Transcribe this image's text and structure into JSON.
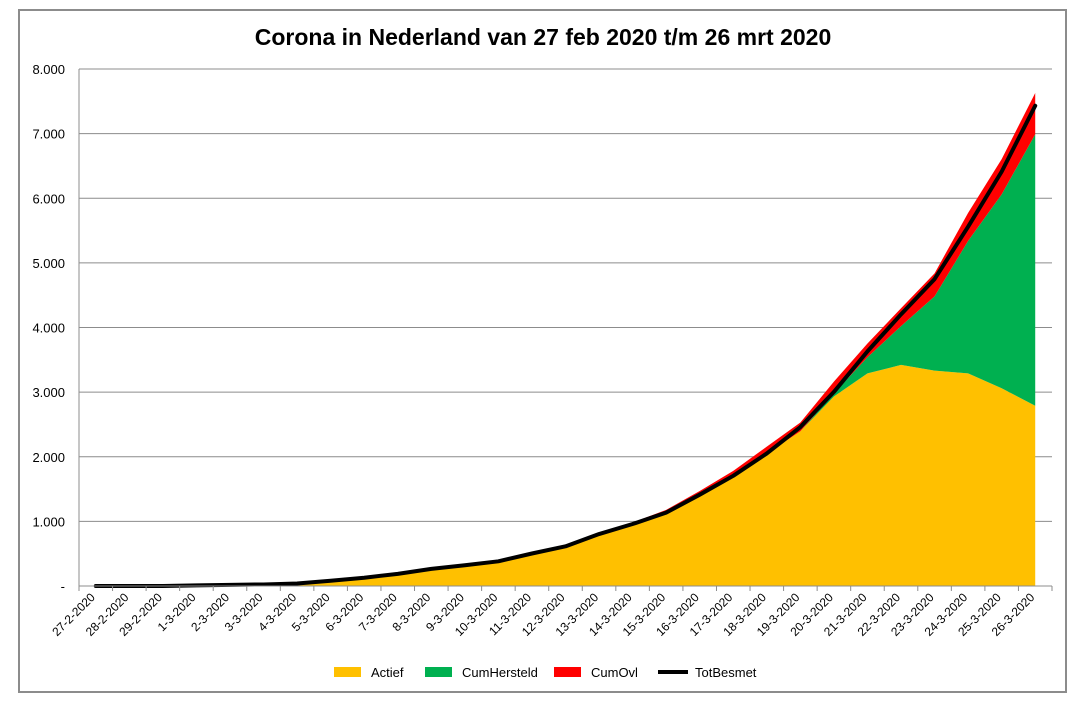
{
  "chart_data": {
    "type": "area",
    "title": "Corona in Nederland van 27 feb 2020 t/m 26 mrt 2020",
    "xlabel": "",
    "ylabel": "",
    "ylim": [
      0,
      8000
    ],
    "yticks": [
      {
        "value": 0,
        "label": "-"
      },
      {
        "value": 1000,
        "label": "1.000"
      },
      {
        "value": 2000,
        "label": "2.000"
      },
      {
        "value": 3000,
        "label": "3.000"
      },
      {
        "value": 4000,
        "label": "4.000"
      },
      {
        "value": 5000,
        "label": "5.000"
      },
      {
        "value": 6000,
        "label": "6.000"
      },
      {
        "value": 7000,
        "label": "7.000"
      },
      {
        "value": 8000,
        "label": "8.000"
      }
    ],
    "grid": true,
    "legend_position": "bottom",
    "categories": [
      "27-2-2020",
      "28-2-2020",
      "29-2-2020",
      "1-3-2020",
      "2-3-2020",
      "3-3-2020",
      "4-3-2020",
      "5-3-2020",
      "6-3-2020",
      "7-3-2020",
      "8-3-2020",
      "9-3-2020",
      "10-3-2020",
      "11-3-2020",
      "12-3-2020",
      "13-3-2020",
      "14-3-2020",
      "15-3-2020",
      "16-3-2020",
      "17-3-2020",
      "18-3-2020",
      "19-3-2020",
      "20-3-2020",
      "21-3-2020",
      "22-3-2020",
      "23-3-2020",
      "24-3-2020",
      "25-3-2020",
      "26-3-2020"
    ],
    "series": [
      {
        "name": "Actief",
        "kind": "stacked-area",
        "color": "#FFC000",
        "values": [
          1,
          1,
          1,
          10,
          18,
          24,
          38,
          82,
          128,
          188,
          265,
          321,
          382,
          503,
          614,
          804,
          959,
          1135,
          1413,
          1705,
          2051,
          2394,
          2933,
          3290,
          3421,
          3332,
          3290,
          3060,
          2790
        ]
      },
      {
        "name": "CumHersteld",
        "kind": "stacked-area",
        "color": "#00B050",
        "values": [
          0,
          0,
          0,
          0,
          0,
          0,
          0,
          0,
          0,
          0,
          0,
          0,
          0,
          0,
          0,
          0,
          0,
          0,
          0,
          0,
          0,
          0,
          50,
          250,
          600,
          1150,
          2050,
          3000,
          4200
        ]
      },
      {
        "name": "CumOvl",
        "kind": "stacked-area",
        "color": "#FF0000",
        "values": [
          0,
          0,
          0,
          0,
          0,
          0,
          0,
          0,
          1,
          3,
          4,
          5,
          5,
          10,
          12,
          20,
          24,
          43,
          58,
          76,
          106,
          136,
          179,
          213,
          276,
          356,
          434,
          546,
          639
        ]
      },
      {
        "name": "TotBesmet",
        "kind": "line",
        "color": "#000000",
        "values": [
          1,
          1,
          1,
          10,
          18,
          24,
          38,
          82,
          128,
          188,
          265,
          321,
          382,
          503,
          614,
          804,
          959,
          1135,
          1413,
          1705,
          2051,
          2460,
          3003,
          3631,
          4204,
          4749,
          5560,
          6412,
          7431
        ]
      }
    ]
  }
}
